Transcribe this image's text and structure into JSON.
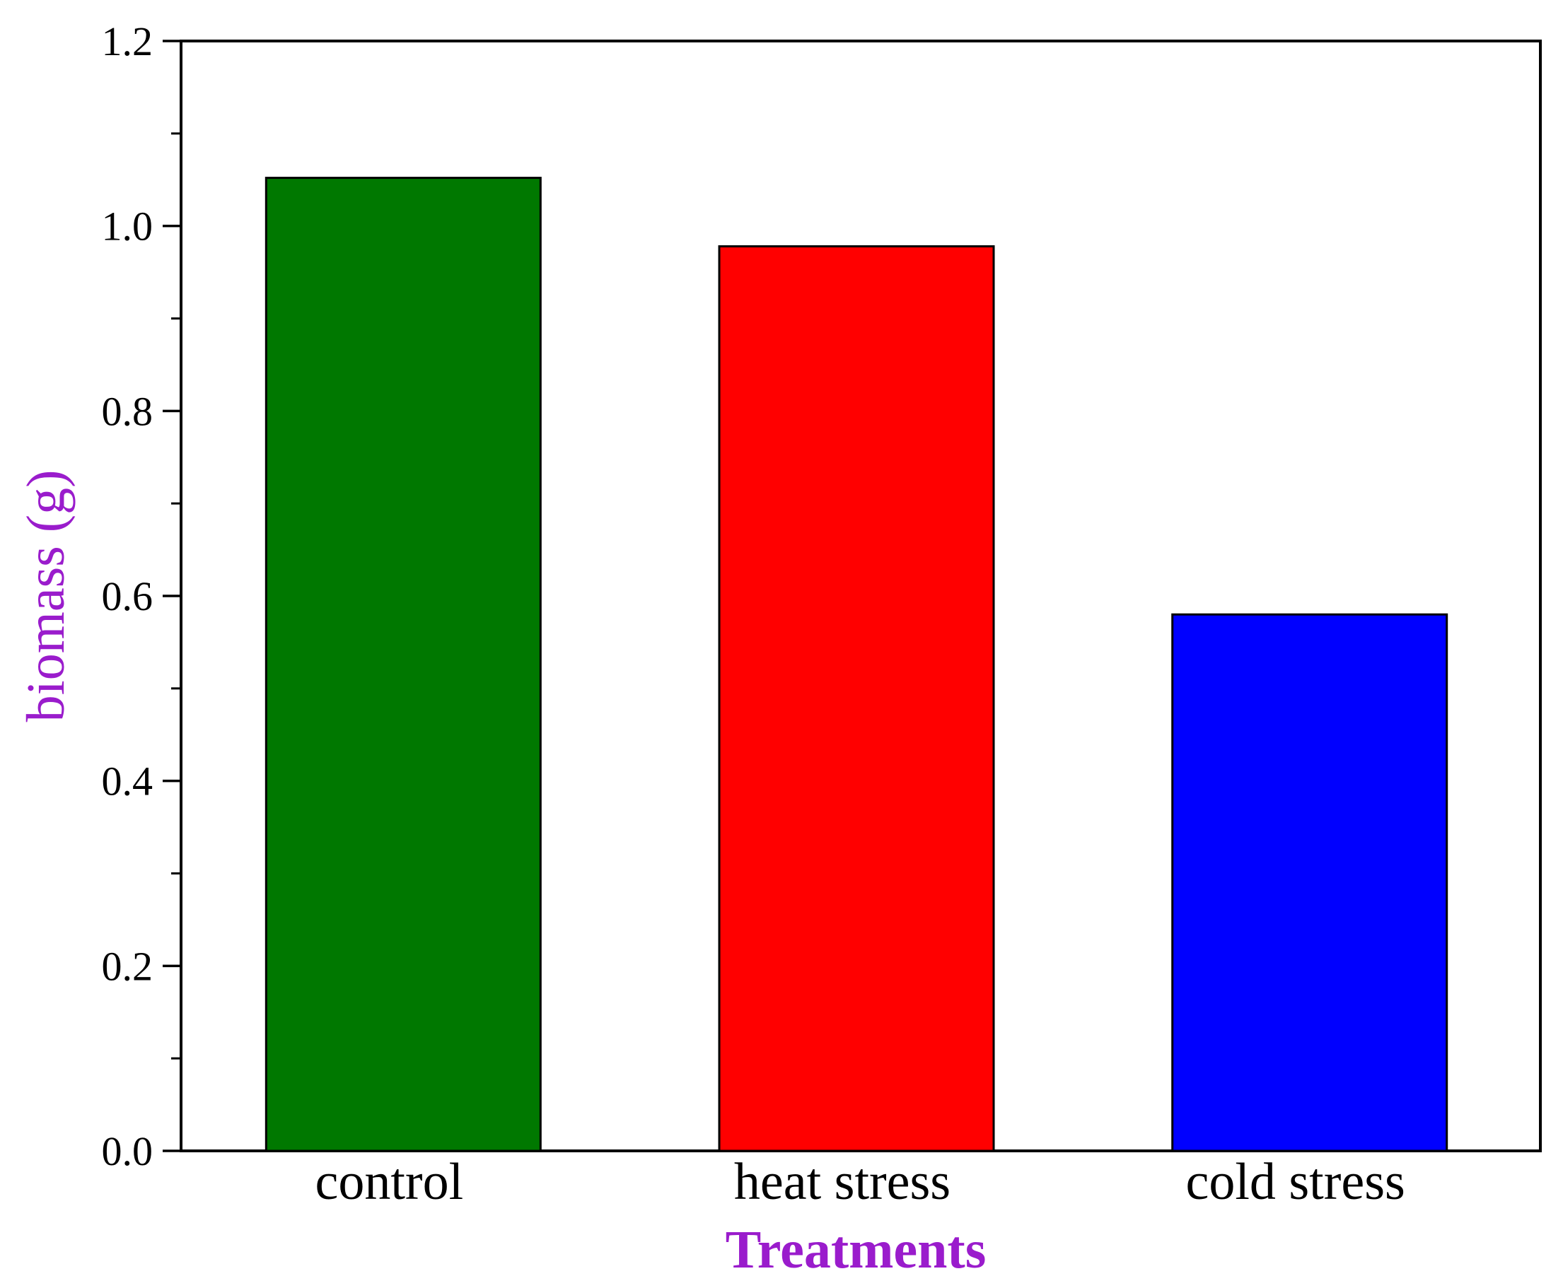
{
  "chart_data": {
    "type": "bar",
    "categories": [
      "control",
      "heat stress",
      "cold stress"
    ],
    "values": [
      1.052,
      0.978,
      0.58
    ],
    "bar_colors": [
      "#007800",
      "#ff0000",
      "#0000ff"
    ],
    "xlabel": "Treatments",
    "ylabel": "biomass (g)",
    "label_color": "#9a1ccc",
    "ylim": [
      0,
      1.2
    ],
    "yticks": [
      0.0,
      0.2,
      0.4,
      0.6,
      0.8,
      1.0,
      1.2
    ],
    "ytick_labels": [
      "0.0",
      "0.2",
      "0.4",
      "0.6",
      "0.8",
      "1.0",
      "1.2"
    ],
    "grid": false
  }
}
